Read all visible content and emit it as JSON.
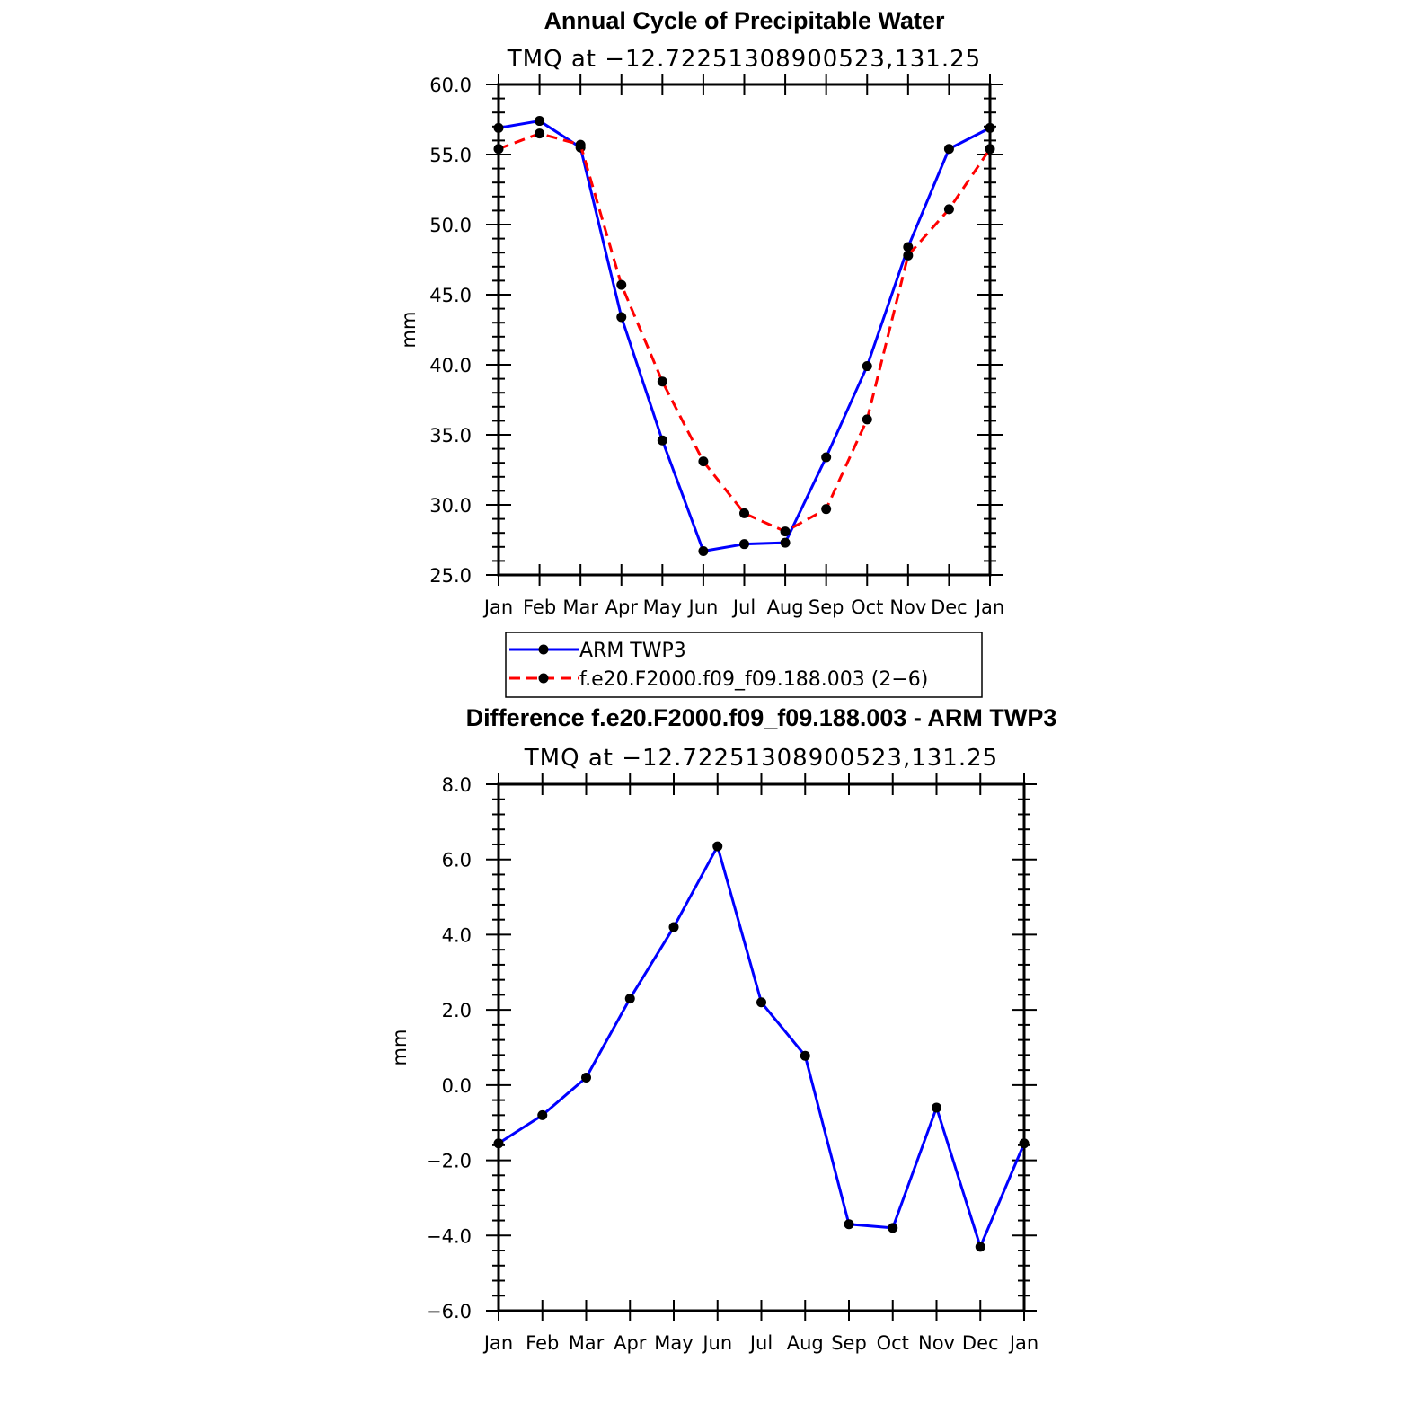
{
  "chart_data": [
    {
      "type": "line",
      "title": "Annual Cycle of Precipitable Water",
      "subtitle": "TMQ at −12.72251308900523,131.25",
      "ylabel": "mm",
      "xlabel": "",
      "ylim": [
        25,
        60
      ],
      "y_ticks": [
        "25.0",
        "30.0",
        "35.0",
        "40.0",
        "45.0",
        "50.0",
        "55.0",
        "60.0"
      ],
      "categories": [
        "Jan",
        "Feb",
        "Mar",
        "Apr",
        "May",
        "Jun",
        "Jul",
        "Aug",
        "Sep",
        "Oct",
        "Nov",
        "Dec",
        "Jan"
      ],
      "grid": false,
      "legend": "below",
      "series": [
        {
          "name": "ARM TWP3",
          "color": "#0000ff",
          "dash": "solid",
          "values": [
            56.9,
            57.4,
            55.5,
            43.4,
            34.6,
            26.7,
            27.2,
            27.3,
            33.4,
            39.9,
            48.4,
            55.4,
            56.9
          ]
        },
        {
          "name": "f.e20.F2000.f09_f09.188.003 (2−6)",
          "color": "#ff0000",
          "dash": "dashed",
          "values": [
            55.4,
            56.5,
            55.7,
            45.7,
            38.8,
            33.1,
            29.4,
            28.1,
            29.7,
            36.1,
            47.8,
            51.1,
            55.4
          ]
        }
      ]
    },
    {
      "type": "line",
      "title": "Difference f.e20.F2000.f09_f09.188.003 - ARM TWP3",
      "subtitle": "TMQ at −12.72251308900523,131.25",
      "ylabel": "mm",
      "xlabel": "",
      "ylim": [
        -6,
        8
      ],
      "y_ticks": [
        "−6.0",
        "−4.0",
        "−2.0",
        "0.0",
        "2.0",
        "4.0",
        "6.0",
        "8.0"
      ],
      "categories": [
        "Jan",
        "Feb",
        "Mar",
        "Apr",
        "May",
        "Jun",
        "Jul",
        "Aug",
        "Sep",
        "Oct",
        "Nov",
        "Dec",
        "Jan"
      ],
      "grid": false,
      "series": [
        {
          "color": "#0000ff",
          "dash": "solid",
          "values": [
            -1.55,
            -0.8,
            0.2,
            2.3,
            4.2,
            6.35,
            2.2,
            0.78,
            -3.7,
            -3.8,
            -0.6,
            -4.3,
            -1.55
          ]
        }
      ]
    }
  ]
}
